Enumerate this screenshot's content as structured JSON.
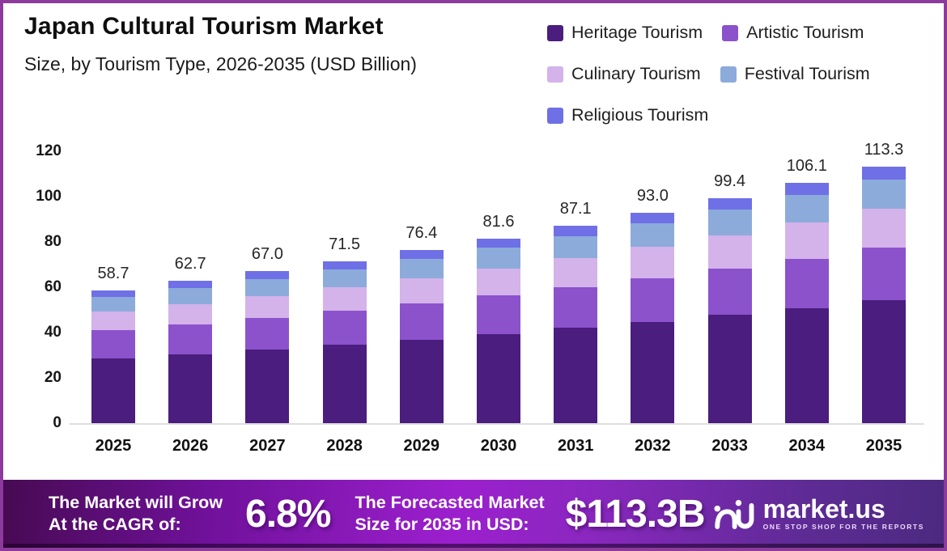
{
  "header": {
    "title": "Japan Cultural Tourism Market",
    "subtitle": "Size, by Tourism Type, 2026-2035 (USD Billion)"
  },
  "legend": {
    "items": [
      {
        "label": "Heritage Tourism",
        "color": "#4a1d7e"
      },
      {
        "label": "Artistic Tourism",
        "color": "#8b52cc"
      },
      {
        "label": "Culinary Tourism",
        "color": "#d4b2ea"
      },
      {
        "label": "Festival Tourism",
        "color": "#8cabdb"
      },
      {
        "label": "Religious Tourism",
        "color": "#6f70e6"
      }
    ]
  },
  "chart_data": {
    "type": "bar",
    "stacked": true,
    "title": "Japan Cultural Tourism Market Size, by Tourism Type, 2026-2035 (USD Billion)",
    "xlabel": "",
    "ylabel": "",
    "unit": "USD Billion",
    "grid": false,
    "legend_position": "top-right",
    "ylim": [
      0,
      120
    ],
    "yticks": [
      0,
      20,
      40,
      60,
      80,
      100,
      120
    ],
    "categories": [
      "2025",
      "2026",
      "2027",
      "2028",
      "2029",
      "2030",
      "2031",
      "2032",
      "2033",
      "2034",
      "2035"
    ],
    "totals": [
      58.7,
      62.7,
      67.0,
      71.5,
      76.4,
      81.6,
      87.1,
      93.0,
      99.4,
      106.1,
      113.3
    ],
    "totals_labels": [
      "58.7",
      "62.7",
      "67.0",
      "71.5",
      "76.4",
      "81.6",
      "87.1",
      "93.0",
      "99.4",
      "106.1",
      "113.3"
    ],
    "series": [
      {
        "name": "Heritage Tourism",
        "color": "#4a1d7e",
        "values": [
          28.6,
          30.5,
          32.5,
          34.6,
          36.9,
          39.4,
          42.0,
          44.7,
          47.7,
          50.8,
          54.2
        ]
      },
      {
        "name": "Artistic Tourism",
        "color": "#8b52cc",
        "values": [
          12.4,
          13.2,
          14.1,
          15.0,
          16.0,
          17.0,
          18.1,
          19.3,
          20.6,
          21.9,
          23.3
        ]
      },
      {
        "name": "Culinary Tourism",
        "color": "#d4b2ea",
        "values": [
          8.3,
          8.9,
          9.6,
          10.3,
          11.0,
          11.9,
          12.8,
          13.7,
          14.7,
          15.8,
          17.0
        ]
      },
      {
        "name": "Festival Tourism",
        "color": "#8cabdb",
        "values": [
          6.5,
          7.0,
          7.5,
          8.0,
          8.6,
          9.2,
          9.8,
          10.5,
          11.3,
          12.1,
          12.9
        ]
      },
      {
        "name": "Religious Tourism",
        "color": "#6f70e6",
        "values": [
          2.9,
          3.1,
          3.3,
          3.6,
          3.9,
          4.1,
          4.4,
          4.8,
          5.1,
          5.5,
          5.9
        ]
      }
    ]
  },
  "banner": {
    "cagr": {
      "line1": "The Market will Grow",
      "line2": "At the CAGR of:",
      "value": "6.8%"
    },
    "forecast": {
      "line1": "The Forecasted Market",
      "line2": "Size for 2035 in USD:",
      "value": "$113.3B"
    },
    "brand": {
      "name": "market.us",
      "tagline": "ONE STOP SHOP FOR THE REPORTS"
    }
  },
  "colors": {
    "frame_border": "#8c3a9c",
    "axis_line": "#dedede",
    "background": "#ffffff",
    "value_label": "#262626",
    "banner_gradient": [
      "#470a52",
      "#70119b",
      "#9c1fce",
      "#8b27c0",
      "#5e2b95",
      "#4c2a80"
    ]
  }
}
